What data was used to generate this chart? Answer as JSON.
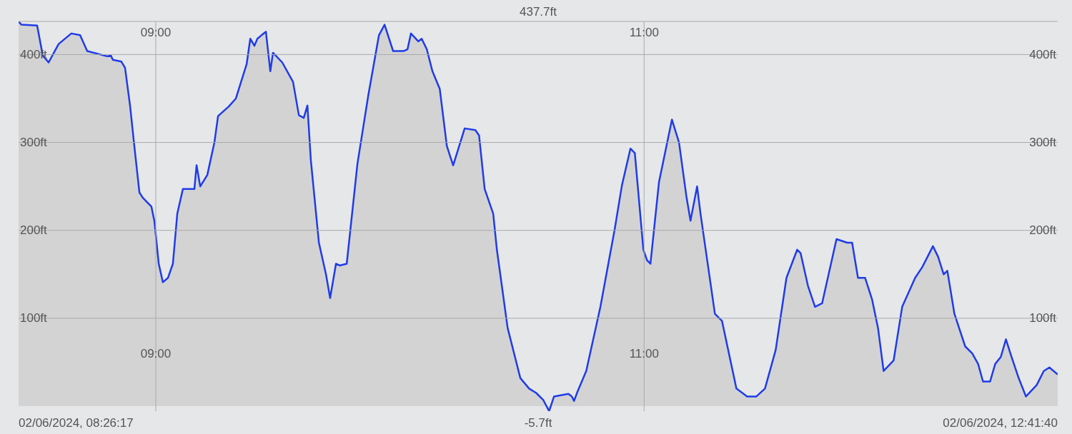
{
  "chart_data": {
    "type": "area",
    "color": "#1f3ce8",
    "x": [
      8.438,
      8.449,
      8.514,
      8.537,
      8.561,
      8.602,
      8.654,
      8.69,
      8.719,
      8.801,
      8.816,
      8.824,
      8.859,
      8.874,
      8.895,
      8.912,
      8.933,
      8.947,
      8.982,
      8.994,
      9.012,
      9.029,
      9.05,
      9.07,
      9.088,
      9.111,
      9.158,
      9.167,
      9.182,
      9.211,
      9.24,
      9.255,
      9.299,
      9.328,
      9.372,
      9.387,
      9.404,
      9.416,
      9.433,
      9.451,
      9.469,
      9.48,
      9.518,
      9.562,
      9.586,
      9.606,
      9.621,
      9.635,
      9.668,
      9.697,
      9.714,
      9.738,
      9.753,
      9.782,
      9.826,
      9.87,
      9.914,
      9.937,
      9.972,
      10.016,
      10.031,
      10.045,
      10.075,
      10.089,
      10.11,
      10.133,
      10.163,
      10.192,
      10.206,
      10.218,
      10.236,
      10.265,
      10.309,
      10.324,
      10.347,
      10.382,
      10.397,
      10.441,
      10.493,
      10.529,
      10.558,
      10.587,
      10.611,
      10.631,
      10.69,
      10.704,
      10.713,
      10.728,
      10.763,
      10.821,
      10.88,
      10.909,
      10.944,
      10.962,
      10.997,
      11.012,
      11.026,
      11.061,
      11.114,
      11.143,
      11.173,
      11.19,
      11.217,
      11.231,
      11.29,
      11.319,
      11.378,
      11.422,
      11.46,
      11.495,
      11.539,
      11.583,
      11.627,
      11.641,
      11.671,
      11.7,
      11.729,
      11.788,
      11.832,
      11.852,
      11.876,
      11.905,
      11.934,
      11.958,
      11.981,
      12.022,
      12.057,
      12.11,
      12.139,
      12.183,
      12.204,
      12.227,
      12.242,
      12.271,
      12.315,
      12.344,
      12.368,
      12.388,
      12.417,
      12.438,
      12.461,
      12.482,
      12.505,
      12.534,
      12.564,
      12.608,
      12.637,
      12.66,
      12.694
    ],
    "values": [
      437.7,
      434,
      433,
      399,
      391,
      412,
      424,
      422,
      404,
      398,
      399,
      394,
      392,
      385,
      341,
      296,
      243,
      237,
      227,
      211,
      162,
      141,
      146,
      162,
      219,
      247,
      247,
      274,
      250,
      263,
      300,
      330,
      341,
      350,
      389,
      418,
      410,
      418,
      422,
      426,
      381,
      402,
      391,
      369,
      331,
      328,
      342,
      280,
      186,
      150,
      123,
      162,
      160,
      162,
      276,
      353,
      422,
      434,
      404,
      404,
      406,
      424,
      415,
      418,
      406,
      381,
      361,
      296,
      284,
      274,
      290,
      316,
      314,
      308,
      247,
      219,
      178,
      89,
      32,
      20,
      15,
      7,
      -5.7,
      11,
      14,
      11,
      6,
      17,
      40,
      113,
      202,
      251,
      293,
      288,
      178,
      166,
      162,
      255,
      326,
      300,
      239,
      211,
      250,
      219,
      105,
      97,
      20,
      11,
      11,
      20,
      64,
      146,
      178,
      174,
      137,
      113,
      117,
      190,
      186,
      186,
      146,
      146,
      121,
      89,
      40,
      52,
      113,
      146,
      158,
      182,
      170,
      150,
      154,
      105,
      68,
      60,
      48,
      28,
      28,
      48,
      56,
      76,
      56,
      32,
      11,
      24,
      40,
      44,
      36
    ],
    "xlim": [
      8.438,
      12.694
    ],
    "xticks": [
      {
        "value": 9,
        "label": "09:00"
      },
      {
        "value": 11,
        "label": "11:00"
      }
    ],
    "x2lim": [
      8.438,
      12.694
    ],
    "x2ticks": [
      {
        "value": 9,
        "label": "09:00"
      },
      {
        "value": 11,
        "label": "11:00"
      }
    ],
    "ylim": [
      -5.7,
      437.7
    ],
    "yticks": [
      {
        "value": 100,
        "label": "100ft"
      },
      {
        "value": 200,
        "label": "200ft"
      },
      {
        "value": 300,
        "label": "300ft"
      },
      {
        "value": 400,
        "label": "400ft"
      }
    ],
    "y2lim": [
      -5.7,
      437.7
    ],
    "y2ticks": [
      {
        "value": 100,
        "label": "100ft"
      },
      {
        "value": 200,
        "label": "200ft"
      },
      {
        "value": 300,
        "label": "300ft"
      },
      {
        "value": 400,
        "label": "400ft"
      }
    ],
    "grid": true,
    "annotations": [
      "437.7ft",
      "-5.7ft",
      "02/06/2024, 08:26:17",
      "02/06/2024, 12:41:40"
    ]
  }
}
